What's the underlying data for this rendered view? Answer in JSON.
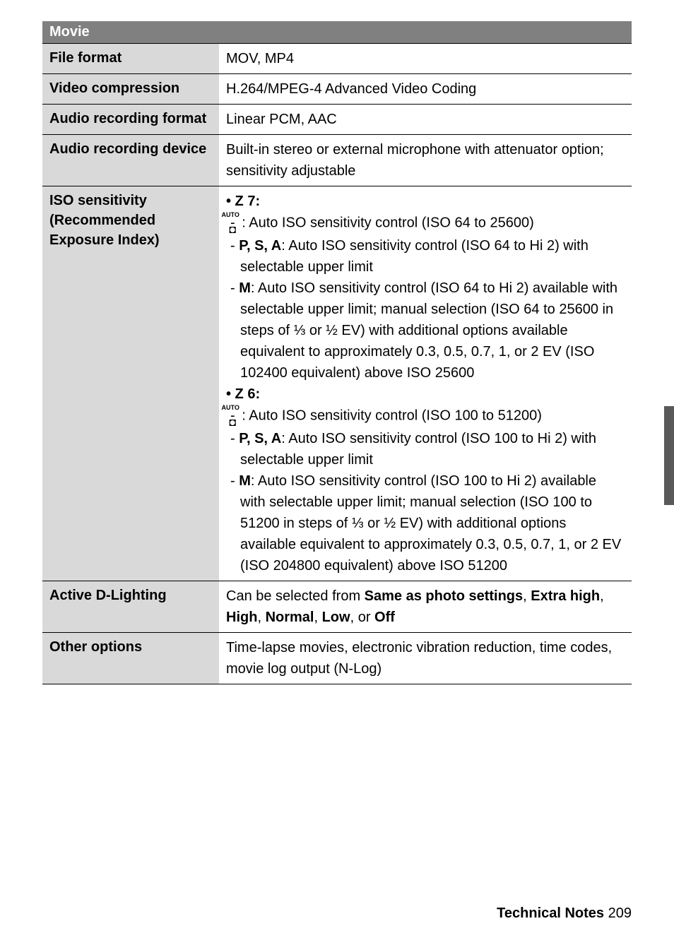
{
  "section": {
    "header": "Movie"
  },
  "rows": {
    "file_format": {
      "label": "File format",
      "value": "MOV, MP4"
    },
    "video_compression": {
      "label": "Video compression",
      "value": "H.264/MPEG-4 Advanced Video Coding"
    },
    "audio_recording_format": {
      "label": "Audio recording format",
      "value": "Linear PCM, AAC"
    },
    "audio_recording_device": {
      "label": "Audio recording device",
      "value": "Built-in stereo or external microphone with attenuator option; sensitivity adjustable"
    },
    "iso_sensitivity": {
      "label": "ISO sensitivity (Recommended Exposure Index)",
      "z7_header": "• Z 7:",
      "z7_auto": ": Auto ISO sensitivity control (ISO 64 to 25600)",
      "z7_psa_prefix": "P, S, A",
      "z7_psa": ": Auto ISO sensitivity control (ISO 64 to Hi 2) with selectable upper limit",
      "z7_m_prefix": "M",
      "z7_m": ": Auto ISO sensitivity control (ISO 64 to Hi 2) available with selectable upper limit; manual selection (ISO 64 to 25600 in steps of ⅓ or ½ EV) with additional options available equivalent to approximately 0.3, 0.5, 0.7, 1, or 2 EV (ISO 102400 equivalent) above ISO 25600",
      "z6_header": "• Z 6:",
      "z6_auto": ": Auto ISO sensitivity control (ISO 100 to 51200)",
      "z6_psa_prefix": "P, S, A",
      "z6_psa": ": Auto ISO sensitivity control (ISO 100 to Hi 2) with selectable upper limit",
      "z6_m_prefix": "M",
      "z6_m": ": Auto ISO sensitivity control (ISO 100 to Hi 2) available with selectable upper limit; manual selection (ISO 100 to 51200 in steps of ⅓ or ½ EV) with additional options available equivalent to approximately 0.3, 0.5, 0.7, 1, or 2 EV (ISO 204800 equivalent) above ISO 51200"
    },
    "active_d_lighting": {
      "label": "Active D-Lighting",
      "prefix": "Can be selected from ",
      "b1": "Same as photo settings",
      "sep1": ", ",
      "b2": "Extra high",
      "sep2": ", ",
      "b3": "High",
      "sep3": ", ",
      "b4": "Normal",
      "sep4": ", ",
      "b5": "Low",
      "sep5": ", or ",
      "b6": "Off"
    },
    "other_options": {
      "label": "Other options",
      "value": "Time-lapse movies, electronic vibration reduction, time codes, movie log output (N-Log)"
    }
  },
  "footer": {
    "label": "Technical Notes",
    "page": "209"
  },
  "icon": {
    "auto_label": "AUTO"
  }
}
